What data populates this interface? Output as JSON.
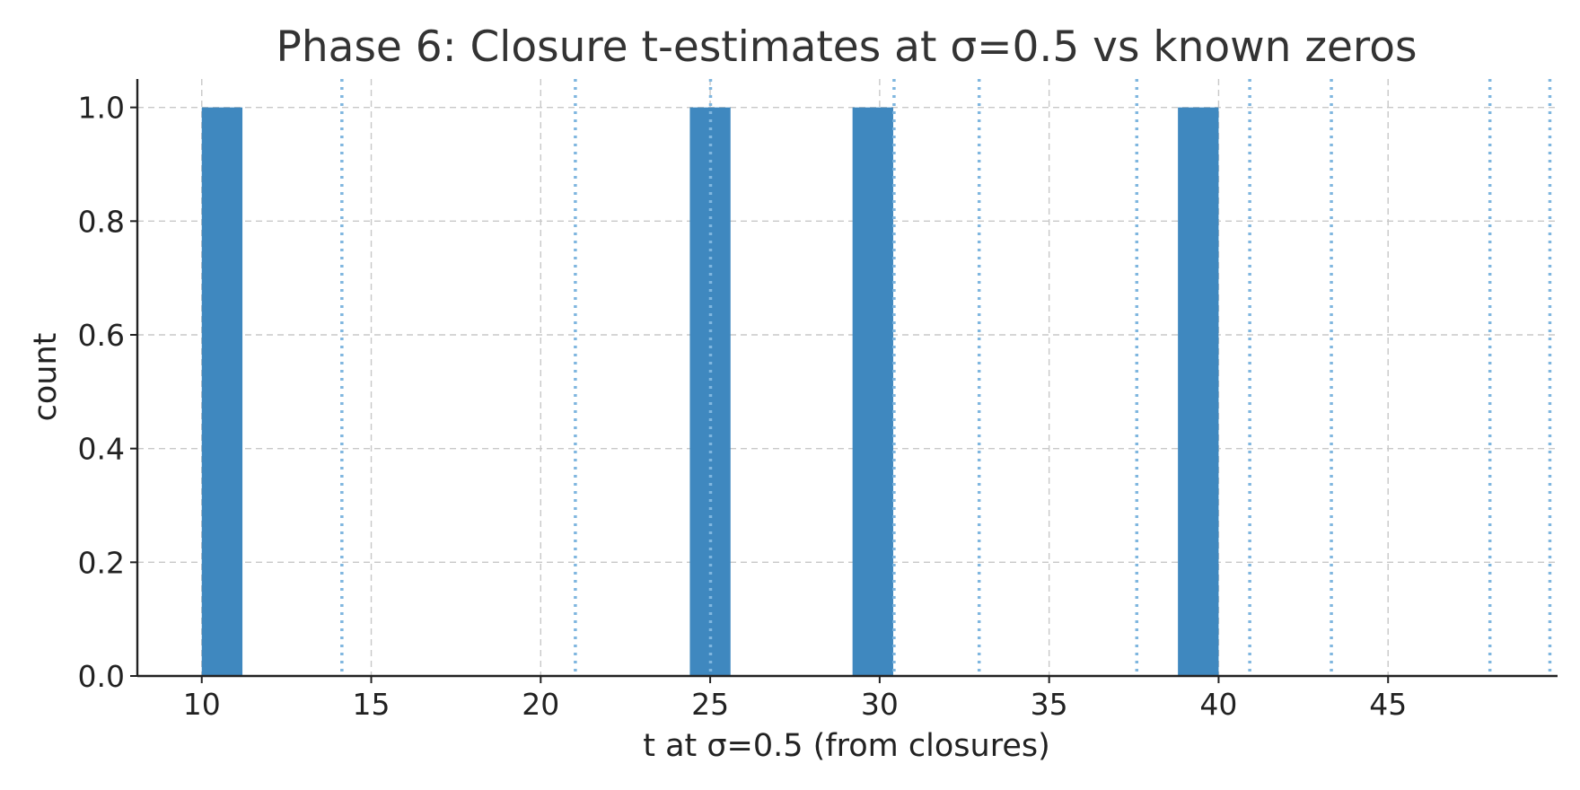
{
  "chart_data": {
    "type": "bar",
    "title": "Phase 6: Closure t-estimates at σ=0.5 vs known zeros",
    "xlabel": "t at σ=0.5 (from closures)",
    "ylabel": "count",
    "xlim": [
      8.1,
      50.0
    ],
    "ylim": [
      0.0,
      1.05
    ],
    "xticks": [
      10,
      15,
      20,
      25,
      30,
      35,
      40,
      45
    ],
    "xtick_labels": [
      "10",
      "15",
      "20",
      "25",
      "30",
      "35",
      "40",
      "45"
    ],
    "yticks": [
      0.0,
      0.2,
      0.4,
      0.6,
      0.8,
      1.0
    ],
    "ytick_labels": [
      "0.0",
      "0.2",
      "0.4",
      "0.6",
      "0.8",
      "1.0"
    ],
    "grid": true,
    "bars": [
      {
        "x0": 10.0,
        "x1": 11.2,
        "count": 1
      },
      {
        "x0": 24.4,
        "x1": 25.6,
        "count": 1
      },
      {
        "x0": 29.2,
        "x1": 30.4,
        "count": 1
      },
      {
        "x0": 38.8,
        "x1": 40.0,
        "count": 1
      }
    ],
    "known_zeros": [
      14.134725,
      21.02204,
      25.010858,
      30.424876,
      32.935062,
      37.586178,
      40.918719,
      43.327073,
      48.005151,
      49.773832
    ],
    "colors": {
      "bar": "#3f88bf",
      "known_zero_line": "#7fb6df",
      "grid": "#c8c8c8",
      "text": "#222222",
      "title": "#333333"
    }
  }
}
